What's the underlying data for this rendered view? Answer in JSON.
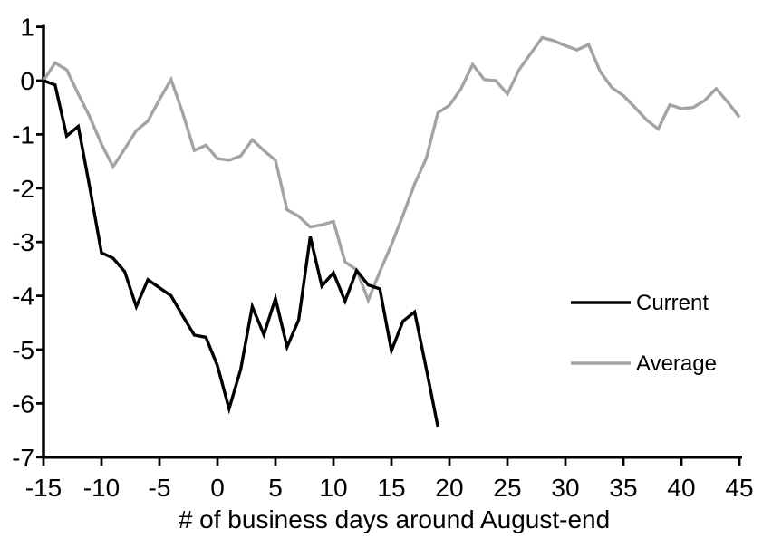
{
  "chart_data": {
    "type": "line",
    "title": "",
    "xlabel": "# of business days around August-end",
    "ylabel": "",
    "grid": false,
    "legend_position": "right-middle",
    "axes": {
      "x": {
        "min": -15,
        "max": 45,
        "ticks": [
          -15,
          -10,
          -5,
          0,
          5,
          10,
          15,
          20,
          25,
          30,
          35,
          40,
          45
        ]
      },
      "y": {
        "min": -7,
        "max": 1,
        "ticks": [
          1,
          0,
          -1,
          -2,
          -3,
          -4,
          -5,
          -6,
          -7
        ]
      }
    },
    "series": [
      {
        "name": "Current",
        "color": "#000000",
        "x": [
          -15,
          -14,
          -13,
          -12,
          -11,
          -10,
          -9,
          -8,
          -7,
          -6,
          -5,
          -4,
          -3,
          -2,
          -1,
          0,
          1,
          2,
          3,
          4,
          5,
          6,
          7,
          8,
          9,
          10,
          11,
          12,
          13,
          14,
          15,
          16,
          17,
          18,
          19
        ],
        "values": [
          0,
          -0.08,
          -1.03,
          -0.85,
          -2.0,
          -3.2,
          -3.3,
          -3.55,
          -4.2,
          -3.7,
          -3.85,
          -4.0,
          -4.37,
          -4.73,
          -4.77,
          -5.3,
          -6.1,
          -5.37,
          -4.2,
          -4.72,
          -4.05,
          -4.95,
          -4.45,
          -2.9,
          -3.82,
          -3.57,
          -4.1,
          -3.53,
          -3.8,
          -3.87,
          -5.02,
          -4.47,
          -4.3,
          -5.35,
          -6.43
        ]
      },
      {
        "name": "Average",
        "color": "#a3a3a3",
        "x": [
          -15,
          -14,
          -13,
          -12,
          -11,
          -10,
          -9,
          -8,
          -7,
          -6,
          -5,
          -4,
          -3,
          -2,
          -1,
          0,
          1,
          2,
          3,
          4,
          5,
          6,
          7,
          8,
          9,
          10,
          11,
          12,
          13,
          14,
          15,
          16,
          17,
          18,
          19,
          20,
          21,
          22,
          23,
          24,
          25,
          26,
          27,
          28,
          29,
          30,
          31,
          32,
          33,
          34,
          35,
          36,
          37,
          38,
          39,
          40,
          41,
          42,
          43,
          44,
          45
        ],
        "values": [
          0,
          0.33,
          0.2,
          -0.25,
          -0.68,
          -1.18,
          -1.6,
          -1.27,
          -0.93,
          -0.75,
          -0.35,
          0.02,
          -0.6,
          -1.3,
          -1.2,
          -1.45,
          -1.48,
          -1.4,
          -1.1,
          -1.3,
          -1.48,
          -2.4,
          -2.52,
          -2.72,
          -2.68,
          -2.62,
          -3.37,
          -3.52,
          -4.08,
          -3.55,
          -3.05,
          -2.5,
          -1.92,
          -1.45,
          -0.6,
          -0.46,
          -0.15,
          0.3,
          0.02,
          0.0,
          -0.25,
          0.2,
          0.5,
          0.8,
          0.74,
          0.65,
          0.57,
          0.67,
          0.17,
          -0.13,
          -0.28,
          -0.5,
          -0.73,
          -0.9,
          -0.45,
          -0.52,
          -0.5,
          -0.37,
          -0.15,
          -0.4,
          -0.68
        ]
      }
    ]
  }
}
